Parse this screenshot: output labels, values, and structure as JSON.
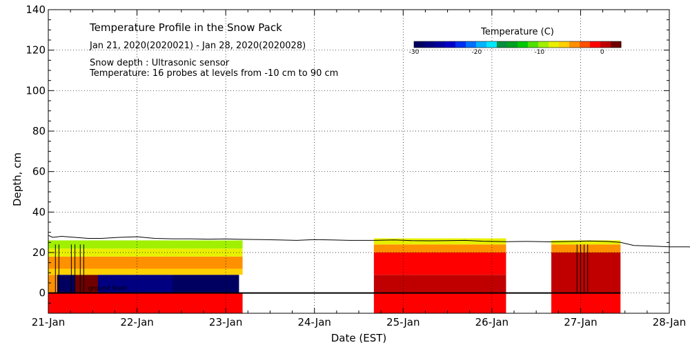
{
  "chart_data": {
    "type": "heatmap",
    "title": "Temperature Profile in the Snow Pack",
    "date_range": "Jan 21, 2020(2020021) - Jan 28, 2020(2020028)",
    "notes": [
      "Snow depth : Ultrasonic sensor",
      "Temperature: 16 probes at levels from -10 cm to 90 cm"
    ],
    "xlabel": "Date (EST)",
    "ylabel": "Depth, cm",
    "xlim": [
      0,
      7
    ],
    "ylim": [
      -10,
      140
    ],
    "x_ticks": [
      {
        "pos": 0,
        "label": "21-Jan"
      },
      {
        "pos": 1,
        "label": "22-Jan"
      },
      {
        "pos": 2,
        "label": "23-Jan"
      },
      {
        "pos": 3,
        "label": "24-Jan"
      },
      {
        "pos": 4,
        "label": "25-Jan"
      },
      {
        "pos": 5,
        "label": "26-Jan"
      },
      {
        "pos": 6,
        "label": "27-Jan"
      },
      {
        "pos": 7,
        "label": "28-Jan"
      }
    ],
    "y_ticks": [
      0,
      20,
      40,
      60,
      80,
      100,
      120,
      140
    ],
    "ground_level_label": "ground level",
    "colorbar": {
      "title": "Temperature (C)",
      "range": [
        -30,
        3
      ],
      "tick_values": [
        -30,
        -20,
        -10,
        0
      ],
      "tick_labels": [
        "-30",
        "-20",
        "-10",
        "0"
      ],
      "colors": [
        "#000060",
        "#000080",
        "#0000a0",
        "#0000c8",
        "#0030f0",
        "#0070ff",
        "#00b4ff",
        "#00e8ff",
        "#009040",
        "#00a020",
        "#00c800",
        "#50e000",
        "#a0f000",
        "#e8f000",
        "#ffd000",
        "#ff9000",
        "#ff5000",
        "#ff0000",
        "#c00000",
        "#700000"
      ]
    },
    "regions": [
      {
        "x0": 0.0,
        "x1": 2.19,
        "y0": -10,
        "y1": 0,
        "temp": -1
      },
      {
        "x0": 0.0,
        "x1": 0.1,
        "y0": 0,
        "y1": 9,
        "temp": -4
      },
      {
        "x0": 0.1,
        "x1": 0.3,
        "y0": 0,
        "y1": 9,
        "temp": -30
      },
      {
        "x0": 0.3,
        "x1": 0.56,
        "y0": 0,
        "y1": 9,
        "temp": 2
      },
      {
        "x0": 0.56,
        "x1": 1.4,
        "y0": 0,
        "y1": 9,
        "temp": -27
      },
      {
        "x0": 1.4,
        "x1": 2.15,
        "y0": 0,
        "y1": 9,
        "temp": -30
      },
      {
        "x0": 0.0,
        "x1": 2.19,
        "y0": 9,
        "y1": 12,
        "temp": -6
      },
      {
        "x0": 0.0,
        "x1": 2.19,
        "y0": 12,
        "y1": 18,
        "temp": -5
      },
      {
        "x0": 0.0,
        "x1": 2.19,
        "y0": 18,
        "y1": 22,
        "temp": -7
      },
      {
        "x0": 0.0,
        "x1": 2.19,
        "y0": 22,
        "y1": 26,
        "temp": -9
      },
      {
        "x0": 3.67,
        "x1": 5.16,
        "y0": -10,
        "y1": 0,
        "temp": -1
      },
      {
        "x0": 3.67,
        "x1": 5.16,
        "y0": 0,
        "y1": 9,
        "temp": 0
      },
      {
        "x0": 3.67,
        "x1": 5.16,
        "y0": 9,
        "y1": 20,
        "temp": -1
      },
      {
        "x0": 3.67,
        "x1": 5.16,
        "y0": 20,
        "y1": 24,
        "temp": -5
      },
      {
        "x0": 3.67,
        "x1": 5.16,
        "y0": 24,
        "y1": 27,
        "temp": -7
      },
      {
        "x0": 5.67,
        "x1": 6.45,
        "y0": -10,
        "y1": 0,
        "temp": -1
      },
      {
        "x0": 5.67,
        "x1": 6.45,
        "y0": 0,
        "y1": 20,
        "temp": 0
      },
      {
        "x0": 5.67,
        "x1": 6.45,
        "y0": 20,
        "y1": 24,
        "temp": -5
      },
      {
        "x0": 5.67,
        "x1": 6.45,
        "y0": 24,
        "y1": 26,
        "temp": -7
      }
    ],
    "snow_depth": [
      [
        0.0,
        28.5
      ],
      [
        0.05,
        27.5
      ],
      [
        0.15,
        28.0
      ],
      [
        0.3,
        27.5
      ],
      [
        0.45,
        27.0
      ],
      [
        0.6,
        27.0
      ],
      [
        0.8,
        27.5
      ],
      [
        1.0,
        27.8
      ],
      [
        1.2,
        27.0
      ],
      [
        1.4,
        26.8
      ],
      [
        1.6,
        26.8
      ],
      [
        1.8,
        26.6
      ],
      [
        2.0,
        26.7
      ],
      [
        2.19,
        26.5
      ],
      [
        2.4,
        26.4
      ],
      [
        2.6,
        26.2
      ],
      [
        2.8,
        26.0
      ],
      [
        3.0,
        26.4
      ],
      [
        3.2,
        26.2
      ],
      [
        3.4,
        26.0
      ],
      [
        3.67,
        26.0
      ],
      [
        3.9,
        26.2
      ],
      [
        4.1,
        25.9
      ],
      [
        4.3,
        25.8
      ],
      [
        4.5,
        25.9
      ],
      [
        4.7,
        26.0
      ],
      [
        4.9,
        25.6
      ],
      [
        5.16,
        25.4
      ],
      [
        5.4,
        25.5
      ],
      [
        5.67,
        25.3
      ],
      [
        5.9,
        25.5
      ],
      [
        6.1,
        25.7
      ],
      [
        6.3,
        25.5
      ],
      [
        6.45,
        25.0
      ],
      [
        6.6,
        23.5
      ],
      [
        6.8,
        23.2
      ],
      [
        7.0,
        22.8
      ],
      [
        7.2,
        22.8
      ],
      [
        7.35,
        22.7
      ]
    ]
  }
}
